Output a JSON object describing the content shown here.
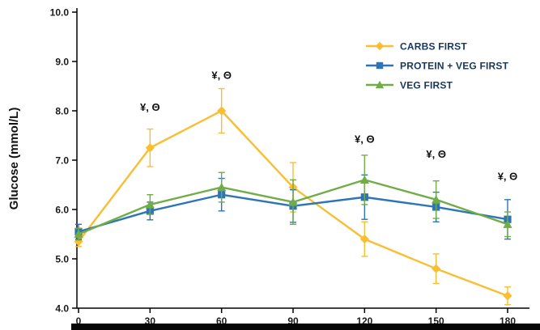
{
  "chart_data": {
    "type": "line",
    "title": "",
    "xlabel": "",
    "ylabel": "Glucose (mmol/L)",
    "x": [
      0,
      30,
      60,
      90,
      120,
      150,
      180
    ],
    "xlim": [
      0,
      180
    ],
    "ylim": [
      4.0,
      10.0
    ],
    "yticks": [
      4.0,
      5.0,
      6.0,
      7.0,
      8.0,
      9.0,
      10.0
    ],
    "grid": "off",
    "legend_position": "top-right",
    "colors": {
      "axis": "#000000",
      "text": "#1a1a1a",
      "annotation": "#111111",
      "legend_text": "#17375E"
    },
    "series": [
      {
        "name": "CARBS FIRST",
        "color": "#F9BE32",
        "marker": "diamond",
        "values": [
          5.35,
          7.25,
          8.0,
          6.45,
          5.4,
          4.8,
          4.25
        ],
        "errors": [
          0.1,
          0.38,
          0.45,
          0.5,
          0.35,
          0.3,
          0.18
        ]
      },
      {
        "name": "PROTEIN + VEG FIRST",
        "color": "#2E75B6",
        "marker": "square",
        "values": [
          5.55,
          5.97,
          6.3,
          6.07,
          6.25,
          6.05,
          5.8
        ],
        "errors": [
          0.15,
          0.18,
          0.33,
          0.33,
          0.45,
          0.3,
          0.4
        ]
      },
      {
        "name": "VEG FIRST",
        "color": "#70AD47",
        "marker": "triangle",
        "values": [
          5.5,
          6.1,
          6.45,
          6.15,
          6.6,
          6.2,
          5.7
        ],
        "errors": [
          0.12,
          0.2,
          0.3,
          0.45,
          0.5,
          0.38,
          0.25
        ]
      }
    ],
    "annotations": [
      {
        "text": "¥, Θ",
        "x": 30,
        "y": 8.0
      },
      {
        "text": "¥, Θ",
        "x": 60,
        "y": 8.65
      },
      {
        "text": "¥, Θ",
        "x": 120,
        "y": 7.35
      },
      {
        "text": "¥, Θ",
        "x": 150,
        "y": 7.05
      },
      {
        "text": "¥, Θ",
        "x": 180,
        "y": 6.6
      }
    ]
  }
}
